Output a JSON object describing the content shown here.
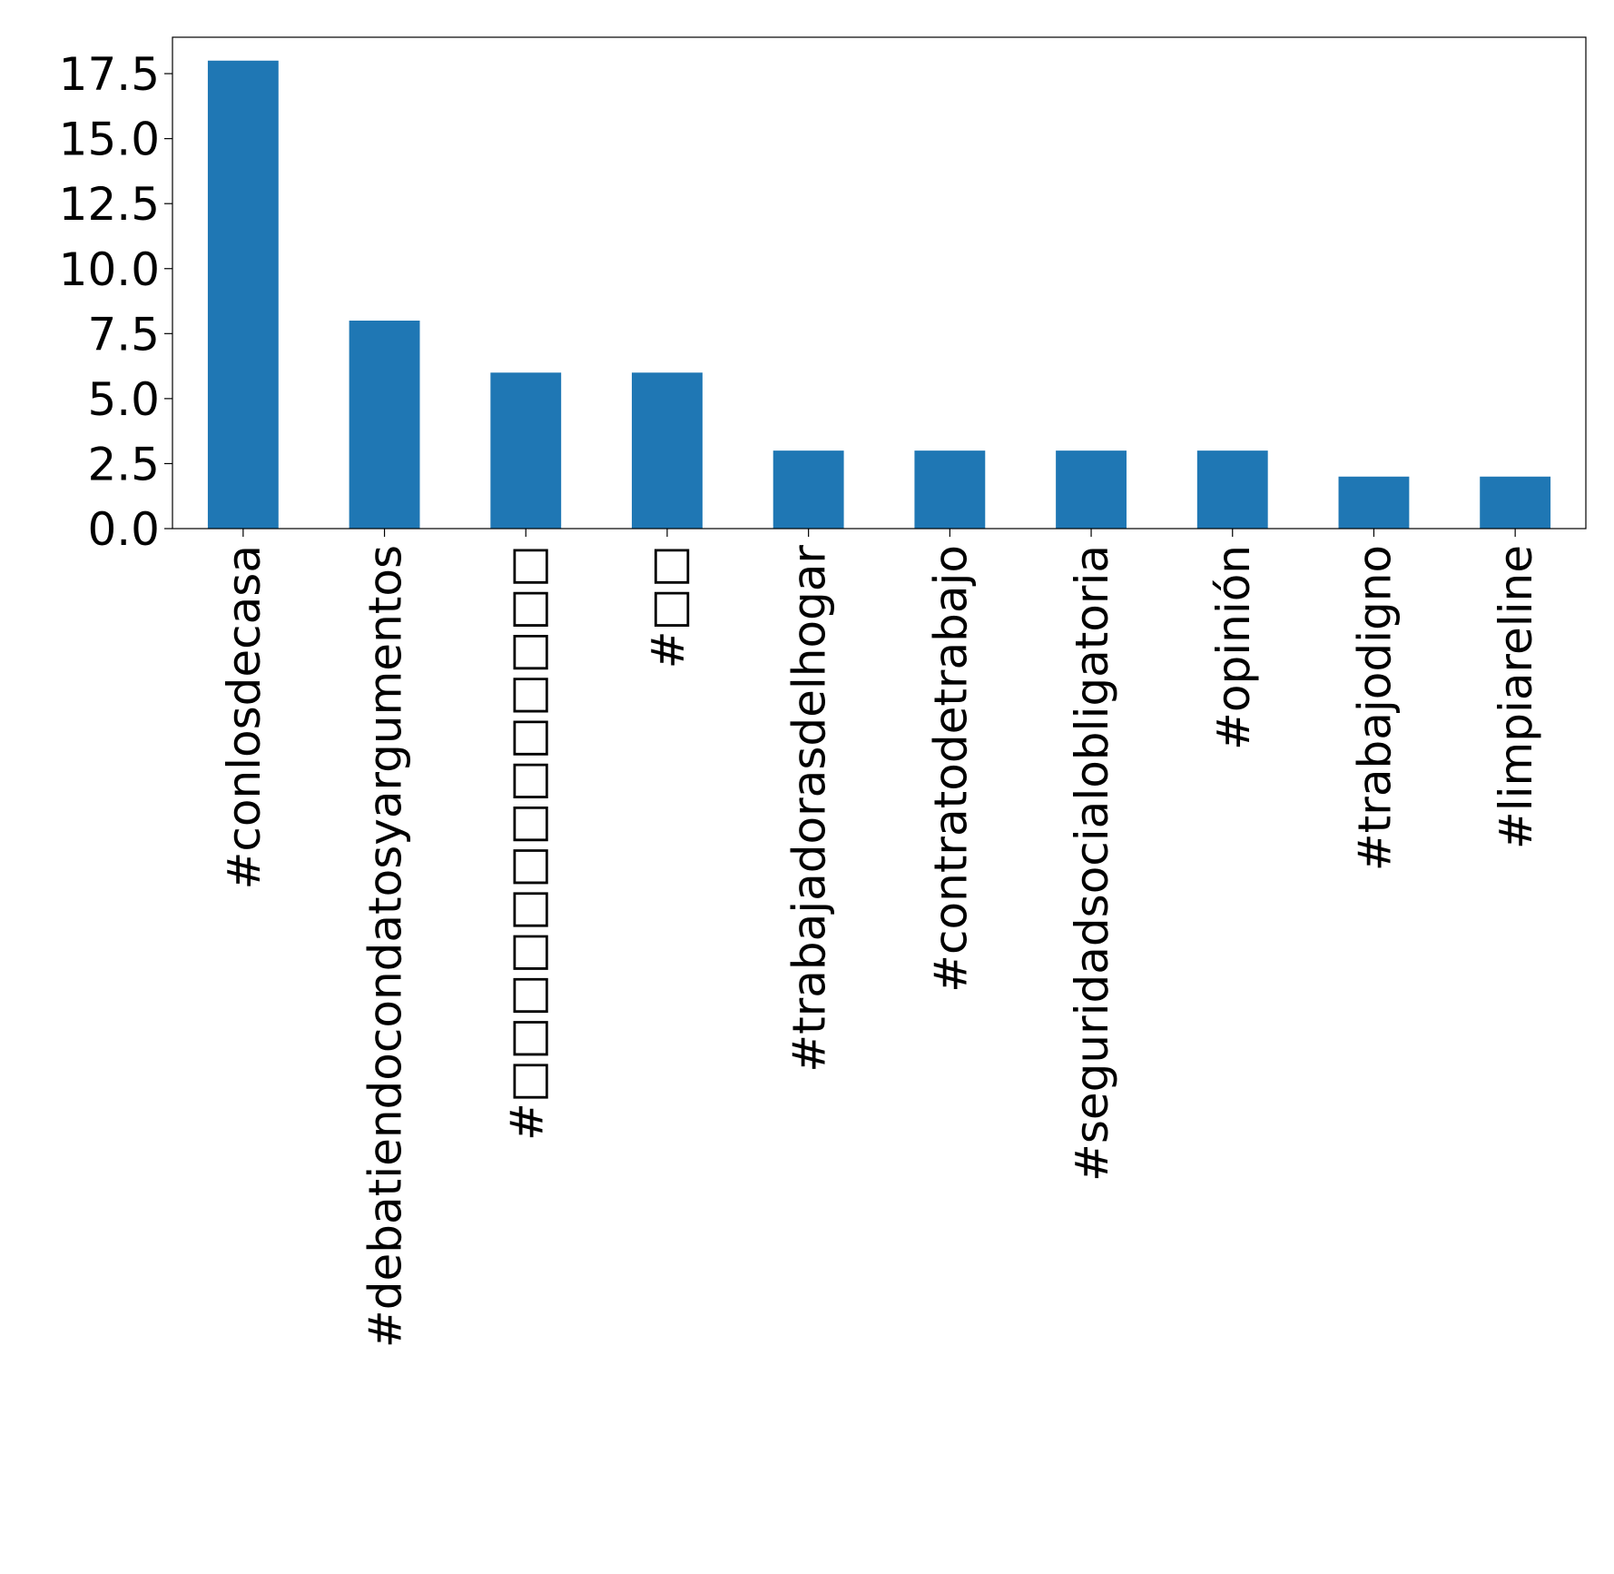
{
  "chart_data": {
    "type": "bar",
    "title": "",
    "xlabel": "",
    "ylabel": "",
    "categories": [
      "#conlosdecasa",
      "#debatiendocondatosyargumentos",
      "#□□□□□□□□□□□□□",
      "#□□",
      "#trabajadorasdelhogar",
      "#contratodetrabajo",
      "#seguridadsocialobligatoria",
      "#opinión",
      "#trabajodigno",
      "#limpiareline"
    ],
    "values": [
      18,
      8,
      6,
      6,
      3,
      3,
      3,
      3,
      2,
      2
    ],
    "ylim": [
      0,
      18.9
    ],
    "yticks": [
      "0.0",
      "2.5",
      "5.0",
      "7.5",
      "10.0",
      "12.5",
      "15.0",
      "17.5"
    ],
    "bar_color": "#1f77b4",
    "grid": false,
    "legend": "none"
  }
}
